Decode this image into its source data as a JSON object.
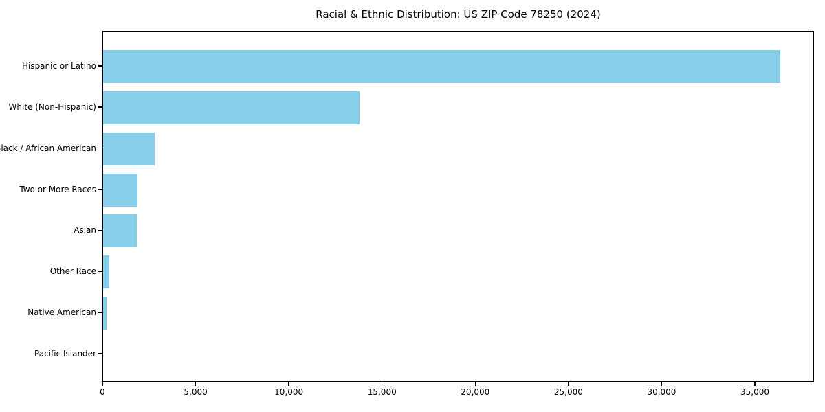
{
  "chart_data": {
    "type": "bar",
    "orientation": "horizontal",
    "title": "Racial & Ethnic Distribution: US ZIP Code 78250 (2024)",
    "categories": [
      "Hispanic or Latino",
      "White (Non-Hispanic)",
      "Black / African American",
      "Two or More Races",
      "Asian",
      "Other Race",
      "Native American",
      "Pacific Islander"
    ],
    "values": [
      36400,
      13800,
      2770,
      1850,
      1800,
      340,
      190,
      0
    ],
    "xlabel": "",
    "ylabel": "",
    "xlim": [
      0,
      38170
    ],
    "x_ticks": [
      0,
      5000,
      10000,
      15000,
      20000,
      25000,
      30000,
      35000
    ],
    "x_tick_labels": [
      "0",
      "5,000",
      "10,000",
      "15,000",
      "20,000",
      "25,000",
      "30,000",
      "35,000"
    ],
    "bar_color": "#87CEEB",
    "spine_color": "#000000",
    "background_color": "#ffffff",
    "grid": false,
    "legend": null
  }
}
